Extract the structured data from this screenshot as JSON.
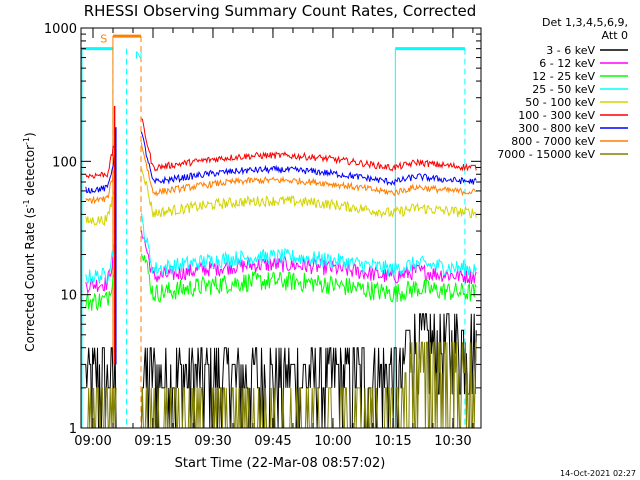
{
  "chart_data": {
    "type": "line",
    "title": "RHESSI Observing Summary Count Rates, Corrected",
    "xlabel": "Start Time (22-Mar-08 08:57:02)",
    "ylabel_main": "Corrected Count Rate (s",
    "ylabel_sup1": "-1",
    "ylabel_mid": " detector",
    "ylabel_sup2": "-1",
    "ylabel_end": ")",
    "yscale": "log",
    "ylim": [
      1,
      1000
    ],
    "xlim_minutes": [
      8.95,
      10.617
    ],
    "xticks": [
      {
        "t": 9.0,
        "label": "09:00"
      },
      {
        "t": 9.25,
        "label": "09:15"
      },
      {
        "t": 9.5,
        "label": "09:30"
      },
      {
        "t": 9.75,
        "label": "09:45"
      },
      {
        "t": 10.0,
        "label": "10:00"
      },
      {
        "t": 10.25,
        "label": "10:15"
      },
      {
        "t": 10.5,
        "label": "10:30"
      }
    ],
    "yticks": [
      {
        "v": 1,
        "label": "1"
      },
      {
        "v": 10,
        "label": "10"
      },
      {
        "v": 100,
        "label": "100"
      },
      {
        "v": 1000,
        "label": "1000"
      }
    ],
    "legend_header": [
      "Det 1,3,4,5,6,9,",
      "Att 0"
    ],
    "legend_position": "right",
    "series": [
      {
        "name": "3 - 6 keV",
        "color": "#000000",
        "level": 3.2,
        "noise": 0.9
      },
      {
        "name": "6 - 12 keV",
        "color": "#ff00ff",
        "level": 14,
        "noise": 0.12
      },
      {
        "name": "12 - 25 keV",
        "color": "#00ff00",
        "level": 10.5,
        "noise": 0.15
      },
      {
        "name": "25 - 50 keV",
        "color": "#00ffff",
        "level": 16,
        "noise": 0.12
      },
      {
        "name": "50 - 100 keV",
        "color": "#d4d400",
        "level": 42,
        "noise": 0.08
      },
      {
        "name": "100 - 300 keV",
        "color": "#ff0000",
        "level": 92,
        "noise": 0.05
      },
      {
        "name": "300 - 800 keV",
        "color": "#0000ff",
        "level": 72,
        "noise": 0.05
      },
      {
        "name": "800 - 7000 keV",
        "color": "#ff7f00",
        "level": 60,
        "noise": 0.05
      },
      {
        "name": "7000 - 15000 keV",
        "color": "#808000",
        "level": 2.2,
        "noise": 1.0
      }
    ],
    "flags": [
      {
        "label": "S",
        "color": "#ff7f00"
      },
      {
        "label": "N",
        "color": "#00ffff"
      }
    ],
    "intervals": [
      {
        "start": 8.95,
        "end": 9.083,
        "color": "#00ffff",
        "kind": "night"
      },
      {
        "start": 9.083,
        "end": 9.2,
        "color": "#ff7f00",
        "kind": "saa"
      },
      {
        "start": 10.26,
        "end": 10.55,
        "color": "#00ffff",
        "kind": "night"
      }
    ]
  },
  "footer": {
    "date_stamp": "14-Oct-2021 02:27"
  },
  "colors": {
    "background": "#ffffff",
    "axes": "#000000"
  }
}
